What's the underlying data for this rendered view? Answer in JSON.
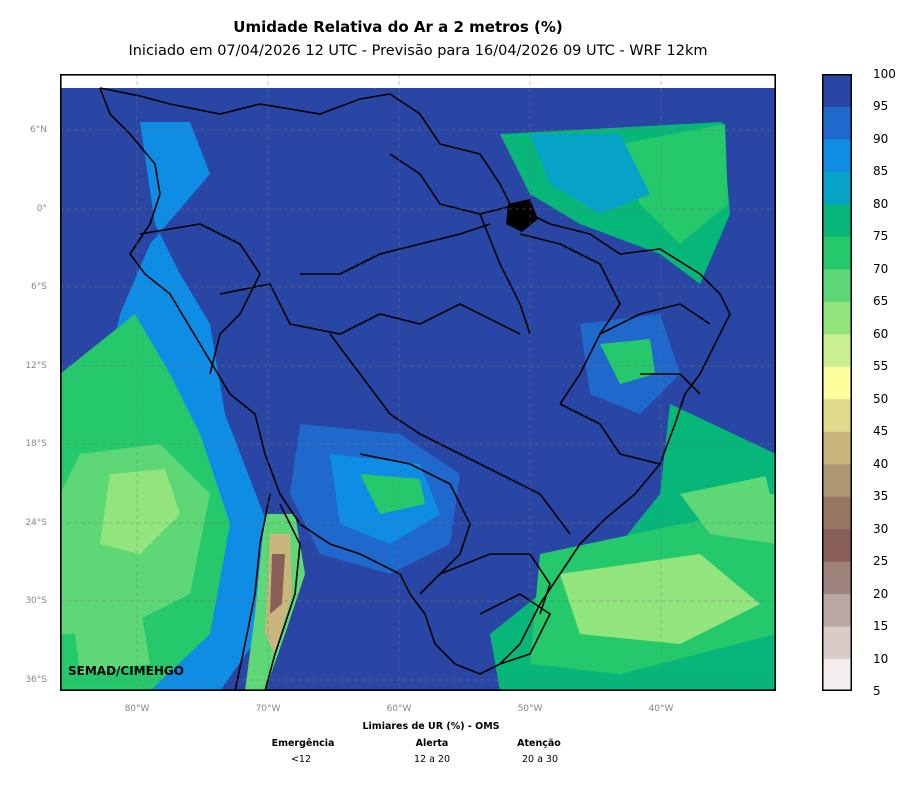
{
  "title": "Umidade Relativa do Ar a 2 metros (%)",
  "subtitle": "Iniciado em 07/04/2026 12 UTC - Previsão para 16/04/2026 09 UTC - WRF 12km",
  "credit": "SEMAD/CIMEHGO",
  "lat_ticks": [
    "6°N",
    "0°",
    "6°S",
    "12°S",
    "18°S",
    "24°S",
    "30°S",
    "36°S"
  ],
  "lon_ticks": [
    "80°W",
    "70°W",
    "60°W",
    "50°W",
    "40°W"
  ],
  "colorbar": {
    "labels": [
      "100",
      "95",
      "90",
      "85",
      "80",
      "75",
      "70",
      "65",
      "60",
      "55",
      "50",
      "45",
      "40",
      "35",
      "30",
      "25",
      "20",
      "15",
      "10",
      "5"
    ],
    "colors_low_to_high": [
      "#f3eeed",
      "#d9cbc8",
      "#bba8a3",
      "#9e837d",
      "#8a5f58",
      "#967661",
      "#ad9772",
      "#c8b67c",
      "#e0db8e",
      "#fcfe9c",
      "#c9ef91",
      "#92e57d",
      "#5ed877",
      "#25c96c",
      "#07b77a",
      "#06a3c6",
      "#0f8ce4",
      "#1e69cb",
      "#2a46a5"
    ]
  },
  "legend": {
    "title": "Limiares de UR (%) - OMS",
    "categories": [
      {
        "name": "Emergência",
        "range": "<12"
      },
      {
        "name": "Alerta",
        "range": "12 a 20"
      },
      {
        "name": "Atenção",
        "range": "20 a 30"
      }
    ]
  }
}
